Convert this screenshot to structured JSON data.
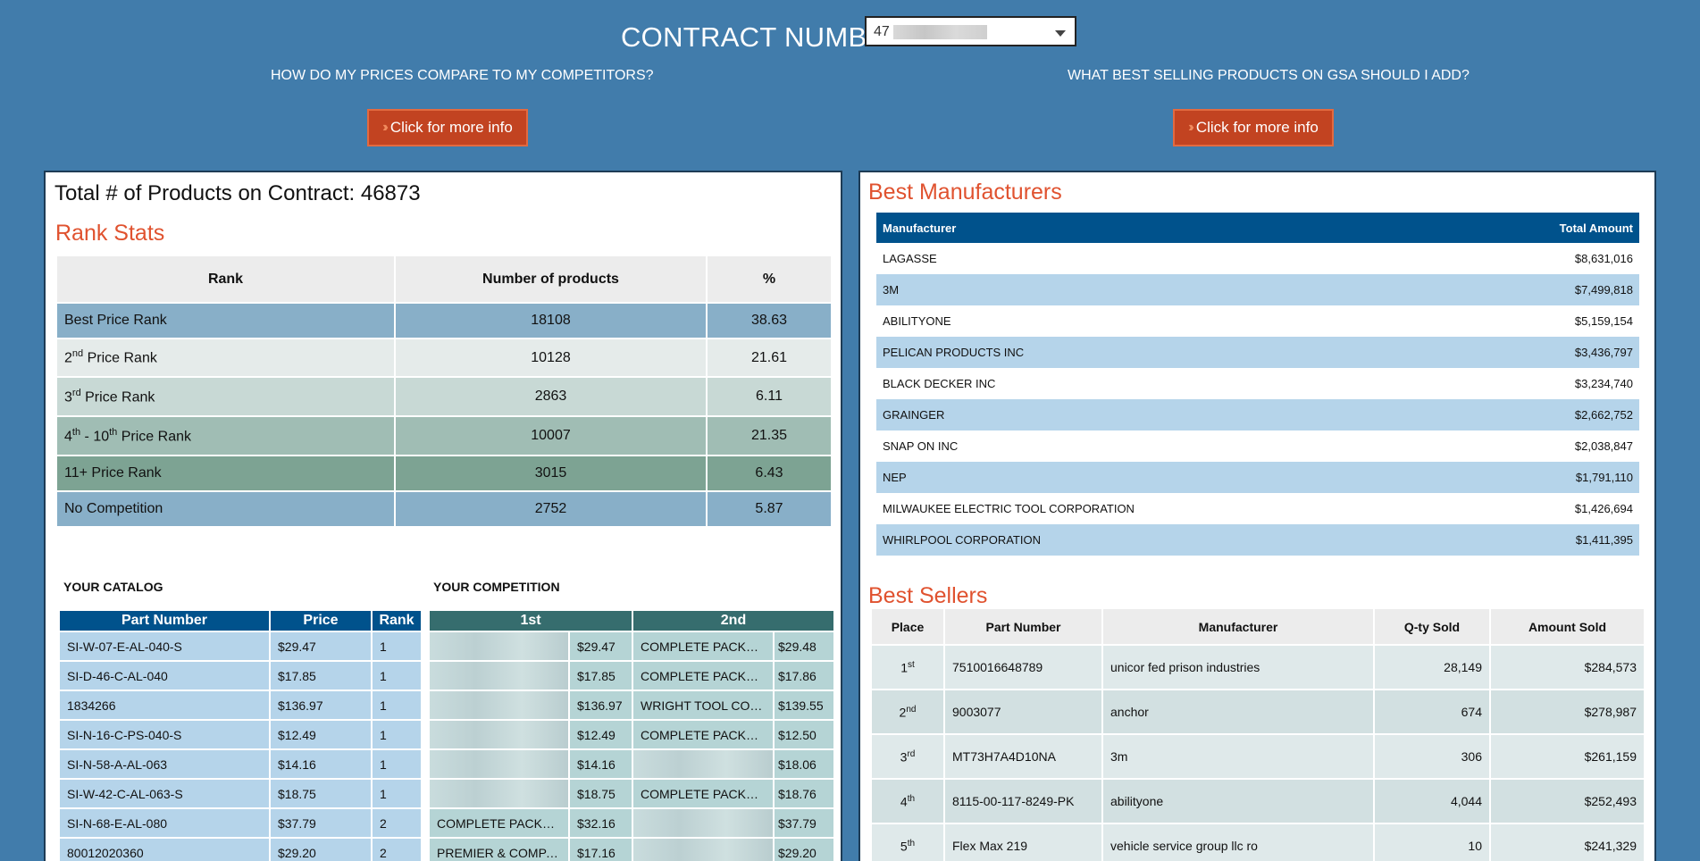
{
  "header": {
    "contract_label": "CONTRACT NUMBER",
    "contract_value": "47",
    "question_left": "HOW DO MY PRICES COMPARE TO MY COMPETITORS?",
    "question_right": "WHAT BEST SELLING PRODUCTS ON GSA SHOULD I ADD?",
    "info_button_label": "Click for more info"
  },
  "left": {
    "total_text": "Total # of Products on Contract: 46873",
    "rank_stats_title": "Rank Stats",
    "rank_headers": [
      "Rank",
      "Number of products",
      "%"
    ],
    "rank_rows": [
      {
        "pre": "Best Price Rank",
        "sup": "",
        "mid": "",
        "sup2": "",
        "post": "",
        "count": "18108",
        "pct": "38.63",
        "color": "#88afc8"
      },
      {
        "pre": "2",
        "sup": "nd",
        "mid": " Price Rank",
        "sup2": "",
        "post": "",
        "count": "10128",
        "pct": "21.61",
        "color": "#e5ebea"
      },
      {
        "pre": "3",
        "sup": "rd",
        "mid": " Price Rank",
        "sup2": "",
        "post": "",
        "count": "2863",
        "pct": "6.11",
        "color": "#c8d9d5"
      },
      {
        "pre": "4",
        "sup": "th",
        "mid": " - 10",
        "sup2": "th",
        "post": " Price Rank",
        "count": "10007",
        "pct": "21.35",
        "color": "#a0bdb4"
      },
      {
        "pre": "11+ Price Rank",
        "sup": "",
        "mid": "",
        "sup2": "",
        "post": "",
        "count": "3015",
        "pct": "6.43",
        "color": "#7da393"
      },
      {
        "pre": "No Competition",
        "sup": "",
        "mid": "",
        "sup2": "",
        "post": "",
        "count": "2752",
        "pct": "5.87",
        "color": "#88afc8"
      }
    ],
    "catalog_heading": "YOUR CATALOG",
    "competition_heading": "YOUR COMPETITION",
    "catalog_headers": [
      "Part Number",
      "Price",
      "Rank"
    ],
    "competition_headers": [
      "1st",
      "2nd"
    ],
    "catalog_rows": [
      {
        "part": "SI-W-07-E-AL-040-S",
        "price": "$29.47",
        "rank": "1",
        "c1name": "",
        "c1price": "$29.47",
        "c2name": "COMPLETE PACKAGING",
        "c2price": "$29.48"
      },
      {
        "part": "SI-D-46-C-AL-040",
        "price": "$17.85",
        "rank": "1",
        "c1name": "",
        "c1price": "$17.85",
        "c2name": "COMPLETE PACKAGING",
        "c2price": "$17.86"
      },
      {
        "part": "1834266",
        "price": "$136.97",
        "rank": "1",
        "c1name": "",
        "c1price": "$136.97",
        "c2name": "WRIGHT TOOL COMPANY",
        "c2price": "$139.55"
      },
      {
        "part": "SI-N-16-C-PS-040-S",
        "price": "$12.49",
        "rank": "1",
        "c1name": "",
        "c1price": "$12.49",
        "c2name": "COMPLETE PACKAGING",
        "c2price": "$12.50"
      },
      {
        "part": "SI-N-58-A-AL-063",
        "price": "$14.16",
        "rank": "1",
        "c1name": "",
        "c1price": "$14.16",
        "c2name": "",
        "c2price": "$18.06"
      },
      {
        "part": "SI-W-42-C-AL-063-S",
        "price": "$18.75",
        "rank": "1",
        "c1name": "",
        "c1price": "$18.75",
        "c2name": "COMPLETE PACKAGING",
        "c2price": "$18.76"
      },
      {
        "part": "SI-N-68-E-AL-080",
        "price": "$37.79",
        "rank": "2",
        "c1name": "COMPLETE PACKAGING",
        "c1price": "$32.16",
        "c2name": "",
        "c2price": "$37.79"
      },
      {
        "part": "80012020360",
        "price": "$29.20",
        "rank": "2",
        "c1name": "PREMIER & COMPANION",
        "c1price": "$17.16",
        "c2name": "",
        "c2price": "$29.20"
      }
    ]
  },
  "right": {
    "best_mfr_title": "Best Manufacturers",
    "mfr_headers": [
      "Manufacturer",
      "Total Amount"
    ],
    "mfr_rows": [
      {
        "name": "LAGASSE",
        "amount": "$8,631,016"
      },
      {
        "name": "3M",
        "amount": "$7,499,818"
      },
      {
        "name": "ABILITYONE",
        "amount": "$5,159,154"
      },
      {
        "name": "PELICAN PRODUCTS INC",
        "amount": "$3,436,797"
      },
      {
        "name": "BLACK DECKER INC",
        "amount": "$3,234,740"
      },
      {
        "name": "GRAINGER",
        "amount": "$2,662,752"
      },
      {
        "name": "SNAP ON INC",
        "amount": "$2,038,847"
      },
      {
        "name": "NEP",
        "amount": "$1,791,110"
      },
      {
        "name": "MILWAUKEE ELECTRIC TOOL CORPORATION",
        "amount": "$1,426,694"
      },
      {
        "name": "WHIRLPOOL CORPORATION",
        "amount": "$1,411,395"
      }
    ],
    "best_sellers_title": "Best Sellers",
    "seller_headers": [
      "Place",
      "Part Number",
      "Manufacturer",
      "Q-ty Sold",
      "Amount Sold"
    ],
    "seller_rows": [
      {
        "place": "1",
        "sup": "st",
        "part": "7510016648789",
        "mfr": "unicor fed prison industries",
        "qty": "28,149",
        "amount": "$284,573"
      },
      {
        "place": "2",
        "sup": "nd",
        "part": "9003077",
        "mfr": "anchor",
        "qty": "674",
        "amount": "$278,987"
      },
      {
        "place": "3",
        "sup": "rd",
        "part": "MT73H7A4D10NA",
        "mfr": "3m",
        "qty": "306",
        "amount": "$261,159"
      },
      {
        "place": "4",
        "sup": "th",
        "part": "8115-00-117-8249-PK",
        "mfr": "abilityone",
        "qty": "4,044",
        "amount": "$252,493"
      },
      {
        "place": "5",
        "sup": "th",
        "part": "Flex Max 219",
        "mfr": "vehicle service group llc ro",
        "qty": "10",
        "amount": "$241,329"
      }
    ]
  }
}
